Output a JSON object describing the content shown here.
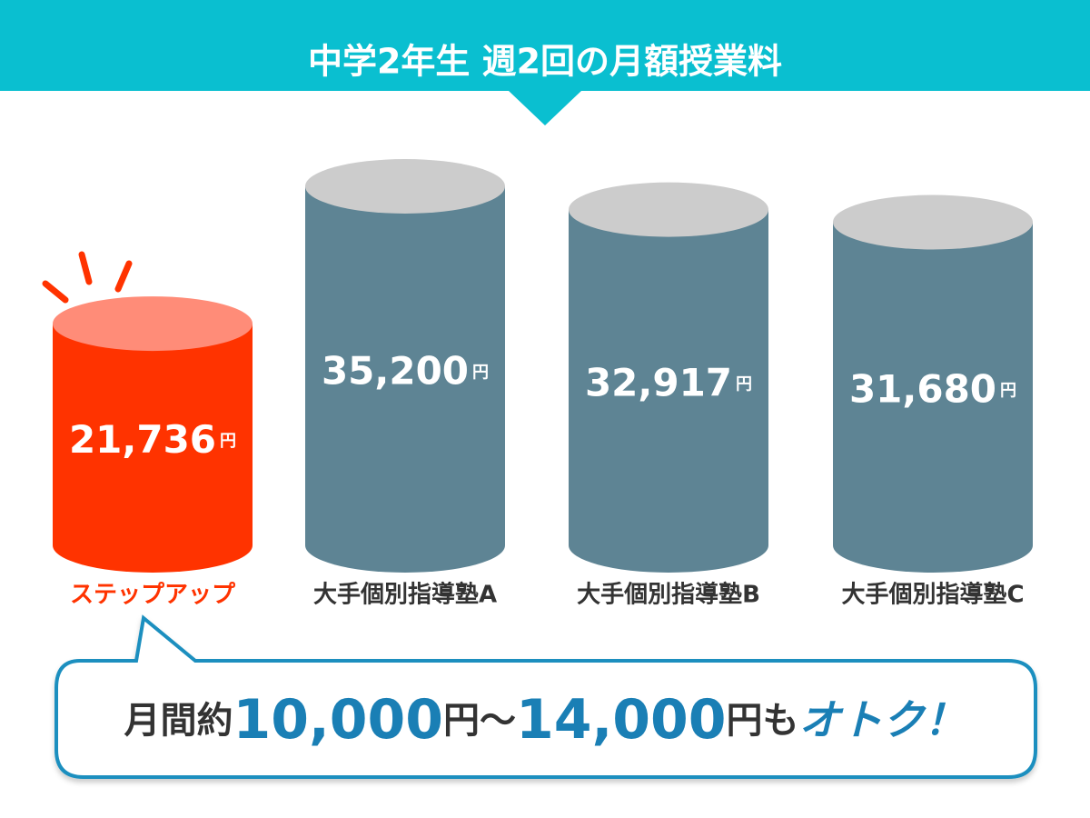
{
  "chart_data": {
    "type": "bar",
    "title": "中学2年生 週2回の月額授業料",
    "categories": [
      "ステップアップ",
      "大手個別指導塾A",
      "大手個別指導塾B",
      "大手個別指導塾C"
    ],
    "values": [
      21736,
      35200,
      32917,
      31680
    ],
    "value_labels": [
      "21,736",
      "35,200",
      "32,917",
      "31,680"
    ],
    "value_unit": "円",
    "colors": [
      "#ff3300",
      "#5e8494",
      "#5e8494",
      "#5e8494"
    ],
    "top_colors": [
      "#ff8c78",
      "#cccccc",
      "#cccccc",
      "#cccccc"
    ],
    "label_colors": [
      "#ff3300",
      "#333333",
      "#333333",
      "#333333"
    ],
    "callout": {
      "prefix": "月間約",
      "low": "10,000",
      "unit": "円",
      "separator": "～",
      "high": "14,000",
      "particle": "も",
      "emphasis": "オトク！"
    }
  }
}
